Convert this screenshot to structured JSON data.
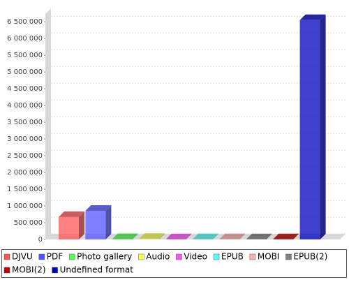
{
  "chart_data": {
    "type": "bar3d",
    "categories": [
      null
    ],
    "series": [
      {
        "name": "DJVU",
        "color": "#ff5555",
        "values": [
          670000
        ]
      },
      {
        "name": "PDF",
        "color": "#5555ff",
        "values": [
          855000
        ]
      },
      {
        "name": "Photo gallery",
        "color": "#55ff55",
        "values": [
          10000
        ]
      },
      {
        "name": "Audio",
        "color": "#ffff55",
        "values": [
          15000
        ]
      },
      {
        "name": "Video",
        "color": "#ff55ff",
        "values": [
          5000
        ]
      },
      {
        "name": "EPUB",
        "color": "#55ffff",
        "values": [
          5000
        ]
      },
      {
        "name": "MOBI",
        "color": "#ffafaf",
        "values": [
          5000
        ]
      },
      {
        "name": "EPUB(2)",
        "color": "#808080",
        "values": [
          5000
        ]
      },
      {
        "name": "MOBI(2)",
        "color": "#c00000",
        "values": [
          5000
        ]
      },
      {
        "name": "Undefined format",
        "color": "#0000c0",
        "values": [
          6550000
        ]
      }
    ],
    "ylim": [
      0,
      6900000
    ],
    "yticks": [
      0,
      {
        "value": 500000,
        "label": "500 000"
      },
      {
        "value": 1000000,
        "label": "1 000 000"
      },
      {
        "value": 1500000,
        "label": "1 500 000"
      },
      {
        "value": 2000000,
        "label": "2 000 000"
      },
      {
        "value": 2500000,
        "label": "2 500 000"
      },
      {
        "value": 3000000,
        "label": "3 000 000"
      },
      {
        "value": 3500000,
        "label": "3 500 000"
      },
      {
        "value": 4000000,
        "label": "4 000 000"
      },
      {
        "value": 4500000,
        "label": "4 500 000"
      },
      {
        "value": 5000000,
        "label": "5 000 000"
      },
      {
        "value": 5500000,
        "label": "5 500 000"
      },
      {
        "value": 6000000,
        "label": "6 000 000"
      },
      {
        "value": 6500000,
        "label": "6 500 000"
      }
    ],
    "grid": true
  }
}
